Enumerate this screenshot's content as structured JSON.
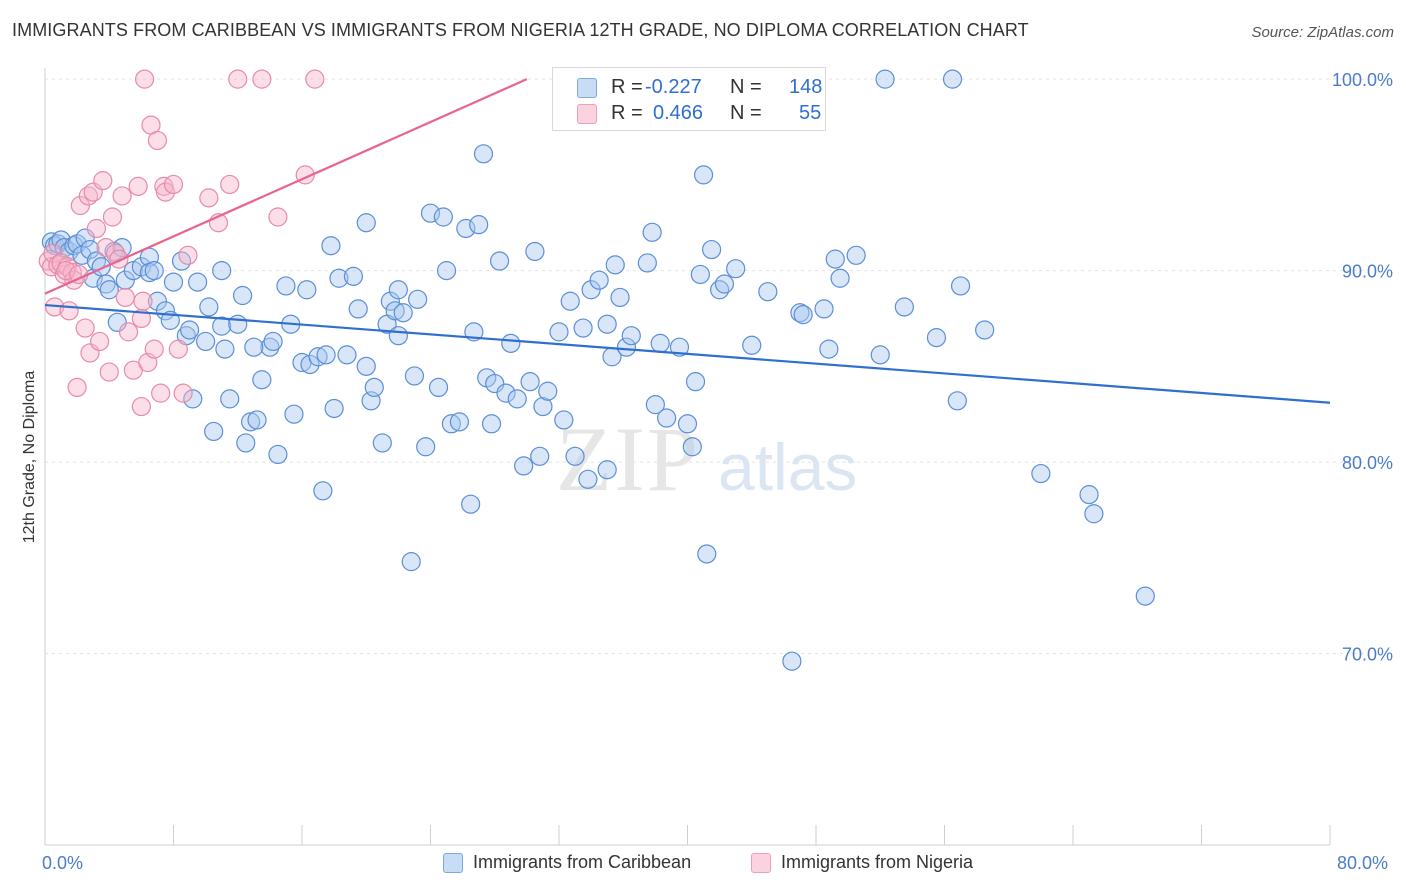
{
  "title": "IMMIGRANTS FROM CARIBBEAN VS IMMIGRANTS FROM NIGERIA 12TH GRADE, NO DIPLOMA CORRELATION CHART",
  "source": "Source: ZipAtlas.com",
  "watermark": {
    "zip": "ZIP",
    "atlas": "atlas"
  },
  "legend": {
    "rows": [
      {
        "r_label": "R =",
        "r_value": "-0.227",
        "n_label": "N =",
        "n_value": "148",
        "color": "#a9c8ef"
      },
      {
        "r_label": "R =",
        "r_value": "0.466",
        "n_label": "N =",
        "n_value": "55",
        "color": "#f7b6cb"
      }
    ]
  },
  "colors": {
    "blue_fill": "#a9c8ef",
    "blue_stroke": "#5b8fd6",
    "blue_line": "#2f6fd0",
    "pink_fill": "#f7b6cb",
    "pink_stroke": "#e88aa8",
    "pink_line": "#e8648e",
    "tick_text": "#4a7cc9"
  },
  "chart_data": {
    "type": "scatter",
    "title": "IMMIGRANTS FROM CARIBBEAN VS IMMIGRANTS FROM NIGERIA 12TH GRADE, NO DIPLOMA CORRELATION CHART",
    "xlabel": "",
    "ylabel": "12th Grade, No Diploma",
    "xlim": [
      0,
      80
    ],
    "ylim": [
      60,
      101
    ],
    "x_tick_labels": [
      "0.0%",
      "80.0%"
    ],
    "y_ticks": [
      70,
      80,
      90,
      100
    ],
    "y_tick_labels": [
      "70.0%",
      "80.0%",
      "90.0%",
      "100.0%"
    ],
    "grid": true,
    "legend_position": "top-center",
    "series": [
      {
        "name": "Immigrants from Caribbean",
        "color": "#a9c8ef",
        "trend": {
          "x": [
            0,
            80
          ],
          "y": [
            88.2,
            83.1
          ]
        },
        "points": [
          [
            0.4,
            91.5
          ],
          [
            0.6,
            91.3
          ],
          [
            0.8,
            91.4
          ],
          [
            1.0,
            91.6
          ],
          [
            1.2,
            91.2
          ],
          [
            1.5,
            91.0
          ],
          [
            1.8,
            91.3
          ],
          [
            2.0,
            91.4
          ],
          [
            2.3,
            90.8
          ],
          [
            2.5,
            91.7
          ],
          [
            2.8,
            91.1
          ],
          [
            3.0,
            89.6
          ],
          [
            3.2,
            90.5
          ],
          [
            3.5,
            90.2
          ],
          [
            3.8,
            89.3
          ],
          [
            4.0,
            89.0
          ],
          [
            4.3,
            91.0
          ],
          [
            4.5,
            87.3
          ],
          [
            4.8,
            91.2
          ],
          [
            5.0,
            89.5
          ],
          [
            5.5,
            90.0
          ],
          [
            6.0,
            90.2
          ],
          [
            6.5,
            90.7
          ],
          [
            6.5,
            89.9
          ],
          [
            7.0,
            88.4
          ],
          [
            7.5,
            87.9
          ],
          [
            7.8,
            87.4
          ],
          [
            8.0,
            89.4
          ],
          [
            8.5,
            90.5
          ],
          [
            8.8,
            86.6
          ],
          [
            9.2,
            83.3
          ],
          [
            9.5,
            89.4
          ],
          [
            10.0,
            86.3
          ],
          [
            10.2,
            88.1
          ],
          [
            10.5,
            81.6
          ],
          [
            11.0,
            87.1
          ],
          [
            11.2,
            85.9
          ],
          [
            11.5,
            83.3
          ],
          [
            12.0,
            87.2
          ],
          [
            12.3,
            88.7
          ],
          [
            12.5,
            81.0
          ],
          [
            12.8,
            82.1
          ],
          [
            13.2,
            82.2
          ],
          [
            13.5,
            84.3
          ],
          [
            14.0,
            86.0
          ],
          [
            14.2,
            86.3
          ],
          [
            14.5,
            80.4
          ],
          [
            15.0,
            89.2
          ],
          [
            15.3,
            87.2
          ],
          [
            15.5,
            82.5
          ],
          [
            16.0,
            85.2
          ],
          [
            16.3,
            89.0
          ],
          [
            16.5,
            85.1
          ],
          [
            17.0,
            85.5
          ],
          [
            17.3,
            78.5
          ],
          [
            17.5,
            85.6
          ],
          [
            17.8,
            91.3
          ],
          [
            18.0,
            82.8
          ],
          [
            18.3,
            89.6
          ],
          [
            18.8,
            85.6
          ],
          [
            19.2,
            89.7
          ],
          [
            19.5,
            88.0
          ],
          [
            20.0,
            92.5
          ],
          [
            20.3,
            83.2
          ],
          [
            20.5,
            83.9
          ],
          [
            21.0,
            81.0
          ],
          [
            21.3,
            87.2
          ],
          [
            21.5,
            88.4
          ],
          [
            21.8,
            87.9
          ],
          [
            22.0,
            86.6
          ],
          [
            22.3,
            87.8
          ],
          [
            22.8,
            74.8
          ],
          [
            23.0,
            84.5
          ],
          [
            23.2,
            88.5
          ],
          [
            23.7,
            80.8
          ],
          [
            24.0,
            93.0
          ],
          [
            24.5,
            83.9
          ],
          [
            24.8,
            92.8
          ],
          [
            25.0,
            90.0
          ],
          [
            25.3,
            82.0
          ],
          [
            25.8,
            82.1
          ],
          [
            26.2,
            92.2
          ],
          [
            26.5,
            77.8
          ],
          [
            26.7,
            86.8
          ],
          [
            27.0,
            92.4
          ],
          [
            27.5,
            84.4
          ],
          [
            27.8,
            82.0
          ],
          [
            28.0,
            84.1
          ],
          [
            28.3,
            90.5
          ],
          [
            28.7,
            83.6
          ],
          [
            29.0,
            86.2
          ],
          [
            29.4,
            83.3
          ],
          [
            29.8,
            79.8
          ],
          [
            30.2,
            84.2
          ],
          [
            30.5,
            91.0
          ],
          [
            30.8,
            80.3
          ],
          [
            31.0,
            82.9
          ],
          [
            31.3,
            83.7
          ],
          [
            32.0,
            86.8
          ],
          [
            32.3,
            82.2
          ],
          [
            32.7,
            88.4
          ],
          [
            33.0,
            80.3
          ],
          [
            33.5,
            87.0
          ],
          [
            33.8,
            79.1
          ],
          [
            34.0,
            89.0
          ],
          [
            34.5,
            89.5
          ],
          [
            35.0,
            79.6
          ],
          [
            35.3,
            85.5
          ],
          [
            35.5,
            90.3
          ],
          [
            35.8,
            88.6
          ],
          [
            36.2,
            86.0
          ],
          [
            36.5,
            86.6
          ],
          [
            37.5,
            90.4
          ],
          [
            37.8,
            92.0
          ],
          [
            38.0,
            83.0
          ],
          [
            38.3,
            86.2
          ],
          [
            38.7,
            82.3
          ],
          [
            39.5,
            86.0
          ],
          [
            40.0,
            82.0
          ],
          [
            40.3,
            80.8
          ],
          [
            40.5,
            84.2
          ],
          [
            40.8,
            89.8
          ],
          [
            41.0,
            95.0
          ],
          [
            41.2,
            75.2
          ],
          [
            41.5,
            91.1
          ],
          [
            42.0,
            89.0
          ],
          [
            42.3,
            89.3
          ],
          [
            43.0,
            90.1
          ],
          [
            44.0,
            86.1
          ],
          [
            46.5,
            69.6
          ],
          [
            47.0,
            87.8
          ],
          [
            47.2,
            87.7
          ],
          [
            48.5,
            88.0
          ],
          [
            48.8,
            85.9
          ],
          [
            49.2,
            90.6
          ],
          [
            49.5,
            89.6
          ],
          [
            50.5,
            90.8
          ],
          [
            52.0,
            85.6
          ],
          [
            52.3,
            100.0
          ],
          [
            53.5,
            88.1
          ],
          [
            55.5,
            86.5
          ],
          [
            56.5,
            100.0
          ],
          [
            56.8,
            83.2
          ],
          [
            57.0,
            89.2
          ],
          [
            58.5,
            86.9
          ],
          [
            62.0,
            79.4
          ],
          [
            65.0,
            78.3
          ],
          [
            65.3,
            77.3
          ],
          [
            68.5,
            73.0
          ],
          [
            27.3,
            96.1
          ],
          [
            20.0,
            85.0
          ],
          [
            11.0,
            90.0
          ],
          [
            13.0,
            86.0
          ],
          [
            6.8,
            90.0
          ],
          [
            9.0,
            86.9
          ],
          [
            22.0,
            89.0
          ],
          [
            35.0,
            87.2
          ],
          [
            45.0,
            88.9
          ]
        ]
      },
      {
        "name": "Immigrants from Nigeria",
        "color": "#f7b6cb",
        "trend": {
          "x": [
            0,
            30
          ],
          "y": [
            88.8,
            100.0
          ]
        },
        "points": [
          [
            0.2,
            90.5
          ],
          [
            0.4,
            90.2
          ],
          [
            0.5,
            90.9
          ],
          [
            0.6,
            88.1
          ],
          [
            0.8,
            90.3
          ],
          [
            1.0,
            90.4
          ],
          [
            1.2,
            89.8
          ],
          [
            1.4,
            90.2
          ],
          [
            1.5,
            87.9
          ],
          [
            1.7,
            89.9
          ],
          [
            1.8,
            89.5
          ],
          [
            2.0,
            83.9
          ],
          [
            2.2,
            93.4
          ],
          [
            2.5,
            87.0
          ],
          [
            2.7,
            93.9
          ],
          [
            2.8,
            85.7
          ],
          [
            3.0,
            94.1
          ],
          [
            3.2,
            92.2
          ],
          [
            3.4,
            86.3
          ],
          [
            3.6,
            94.7
          ],
          [
            3.8,
            91.2
          ],
          [
            4.0,
            84.7
          ],
          [
            4.2,
            92.8
          ],
          [
            4.4,
            90.9
          ],
          [
            4.6,
            90.6
          ],
          [
            4.8,
            93.9
          ],
          [
            5.0,
            88.6
          ],
          [
            5.2,
            86.8
          ],
          [
            5.5,
            84.8
          ],
          [
            5.8,
            94.4
          ],
          [
            6.0,
            87.5
          ],
          [
            6.1,
            88.4
          ],
          [
            6.2,
            100.0
          ],
          [
            6.4,
            85.2
          ],
          [
            6.6,
            97.6
          ],
          [
            6.8,
            85.9
          ],
          [
            7.0,
            96.8
          ],
          [
            7.2,
            83.6
          ],
          [
            7.4,
            94.4
          ],
          [
            7.5,
            94.1
          ],
          [
            8.0,
            94.5
          ],
          [
            8.3,
            85.9
          ],
          [
            8.6,
            83.6
          ],
          [
            8.9,
            90.8
          ],
          [
            10.2,
            93.8
          ],
          [
            10.8,
            92.5
          ],
          [
            11.5,
            94.5
          ],
          [
            12.0,
            100.0
          ],
          [
            13.5,
            100.0
          ],
          [
            14.5,
            92.8
          ],
          [
            16.2,
            95.0
          ],
          [
            16.8,
            100.0
          ],
          [
            6.0,
            82.9
          ],
          [
            1.3,
            90.0
          ],
          [
            2.1,
            89.8
          ]
        ]
      }
    ]
  },
  "bottom_legend": [
    {
      "label": "Immigrants from Caribbean",
      "color": "#a9c8ef"
    },
    {
      "label": "Immigrants from Nigeria",
      "color": "#f7b6cb"
    }
  ]
}
